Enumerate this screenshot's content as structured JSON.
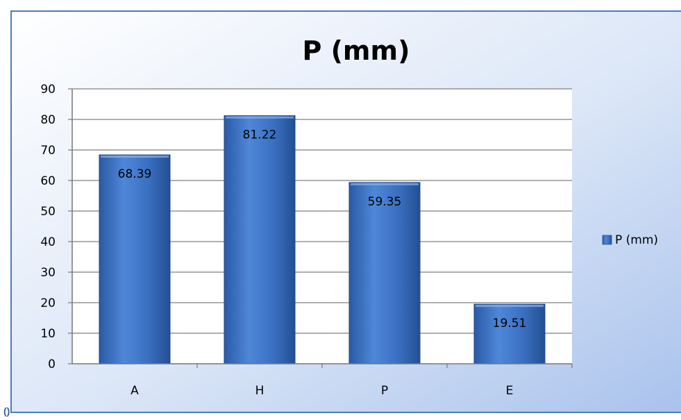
{
  "footnote": "()",
  "chart_data": {
    "type": "bar",
    "title": "P (mm)",
    "categories": [
      "A",
      "H",
      "P",
      "E"
    ],
    "series": [
      {
        "name": "P (mm)",
        "values": [
          68.39,
          81.22,
          59.35,
          19.51
        ]
      }
    ],
    "data_labels": [
      "68.39",
      "81.22",
      "59.35",
      "19.51"
    ],
    "ylim": [
      0,
      90
    ],
    "yticks": [
      0,
      10,
      20,
      30,
      40,
      50,
      60,
      70,
      80,
      90
    ],
    "grid": true,
    "legend": "right",
    "colors": {
      "bar": "#3a6fc0",
      "bar_light": "#5d92e0",
      "bar_dark": "#23508f",
      "background_top": "#ffffff",
      "background_bottom": "#a9c2ec",
      "frame": "#4a7bc2"
    }
  }
}
